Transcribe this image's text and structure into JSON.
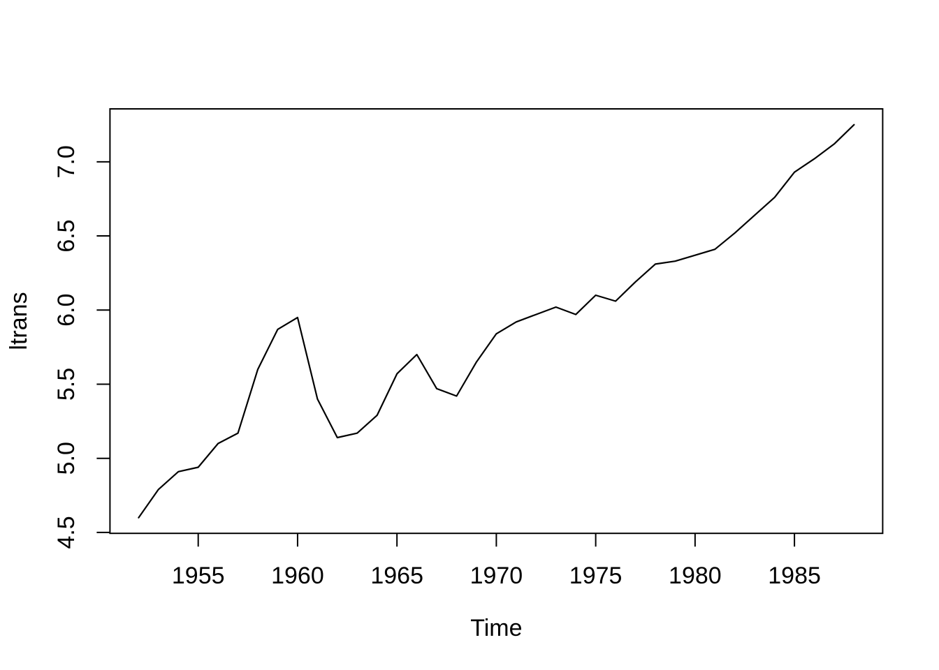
{
  "figure": {
    "background": "#ffffff"
  },
  "chart_data": {
    "type": "line",
    "title": "",
    "xlabel": "Time",
    "ylabel": "ltrans",
    "x": [
      1952,
      1953,
      1954,
      1955,
      1956,
      1957,
      1958,
      1959,
      1960,
      1961,
      1962,
      1963,
      1964,
      1965,
      1966,
      1967,
      1968,
      1969,
      1970,
      1971,
      1972,
      1973,
      1974,
      1975,
      1976,
      1977,
      1978,
      1979,
      1980,
      1981,
      1982,
      1983,
      1984,
      1985,
      1986,
      1987,
      1988
    ],
    "series": [
      {
        "name": "ltrans",
        "values": [
          4.6,
          4.79,
          4.91,
          4.94,
          5.1,
          5.17,
          5.6,
          5.87,
          5.95,
          5.4,
          5.14,
          5.17,
          5.29,
          5.57,
          5.7,
          5.47,
          5.42,
          5.65,
          5.84,
          5.92,
          5.97,
          6.02,
          5.97,
          6.1,
          6.06,
          6.19,
          6.31,
          6.33,
          6.37,
          6.41,
          6.52,
          6.64,
          6.76,
          6.93,
          7.02,
          7.12,
          7.25
        ]
      }
    ],
    "x_ticks": [
      1955,
      1960,
      1965,
      1970,
      1975,
      1980,
      1985
    ],
    "y_ticks": [
      4.5,
      5.0,
      5.5,
      6.0,
      6.5,
      7.0
    ],
    "xlim": [
      1950.56,
      1989.44
    ],
    "ylim": [
      4.494,
      7.357
    ],
    "grid": false,
    "legend": "none",
    "line_color": "#000000",
    "axis_color": "#000000"
  }
}
